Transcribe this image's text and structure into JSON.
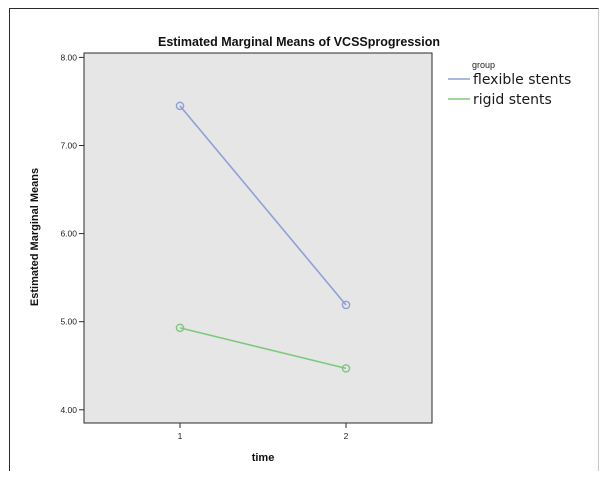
{
  "chart_data": {
    "type": "line",
    "title": "Estimated Marginal Means of VCSSprogression",
    "xlabel": "time",
    "ylabel": "Estimated Marginal Means",
    "categories": [
      "1",
      "2"
    ],
    "ylim": [
      3.85,
      8.05
    ],
    "yticks": [
      "4.00",
      "5.00",
      "6.00",
      "7.00",
      "8.00"
    ],
    "grid": false,
    "legend_position": "right",
    "legend_title": "group",
    "plot_background": "#e6e6e6",
    "series": [
      {
        "name": "flexible stents",
        "color": "#8fa0d8",
        "values": [
          7.45,
          5.19
        ]
      },
      {
        "name": "rigid stents",
        "color": "#7ec87e",
        "values": [
          4.93,
          4.47
        ]
      }
    ]
  }
}
